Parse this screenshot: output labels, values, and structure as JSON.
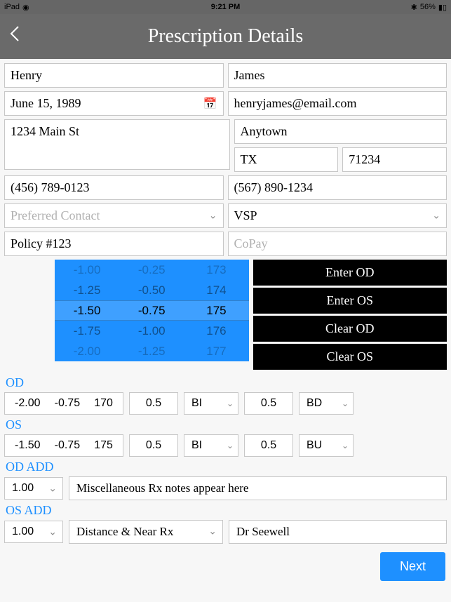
{
  "status": {
    "device": "iPad",
    "wifi": "●●●",
    "time": "9:21 PM",
    "bluetooth": "✱",
    "battery_pct": "56%",
    "battery_icon": "■"
  },
  "header": {
    "title": "Prescription Details"
  },
  "patient": {
    "first_name": "Henry",
    "last_name": "James",
    "dob": "June 15, 1989",
    "email": "henryjames@email.com",
    "address": "1234 Main St",
    "city": "Anytown",
    "state": "TX",
    "zip": "71234",
    "phone1": "(456) 789-0123",
    "phone2": "(567) 890-1234",
    "preferred_contact_placeholder": "Preferred Contact",
    "insurance": "VSP",
    "policy": "Policy #123",
    "copay_placeholder": "CoPay"
  },
  "picker": {
    "rows": [
      {
        "sph": "-1.00",
        "cyl": "-0.25",
        "axis": "173",
        "cls": ""
      },
      {
        "sph": "-1.25",
        "cyl": "-0.50",
        "axis": "174",
        "cls": "near"
      },
      {
        "sph": "-1.50",
        "cyl": "-0.75",
        "axis": "175",
        "cls": "selected"
      },
      {
        "sph": "-1.75",
        "cyl": "-1.00",
        "axis": "176",
        "cls": "near"
      },
      {
        "sph": "-2.00",
        "cyl": "-1.25",
        "axis": "177",
        "cls": ""
      }
    ]
  },
  "actions": {
    "enter_od": "Enter OD",
    "enter_os": "Enter OS",
    "clear_od": "Clear OD",
    "clear_os": "Clear OS"
  },
  "rx": {
    "od_label": "OD",
    "os_label": "OS",
    "od_add_label": "OD ADD",
    "os_add_label": "OS ADD",
    "od": {
      "sph": "-2.00",
      "cyl": "-0.75",
      "axis": "170",
      "prism1": "0.5",
      "base1": "BI",
      "prism2": "0.5",
      "base2": "BD"
    },
    "os": {
      "sph": "-1.50",
      "cyl": "-0.75",
      "axis": "175",
      "prism1": "0.5",
      "base1": "BI",
      "prism2": "0.5",
      "base2": "BU"
    },
    "od_add": "1.00",
    "os_add": "1.00",
    "notes": "Miscellaneous Rx notes appear here",
    "rx_type": "Distance & Near Rx",
    "doctor": "Dr Seewell"
  },
  "buttons": {
    "next": "Next"
  },
  "colors": {
    "accent": "#1e90ff",
    "header_bg": "#6a6a6a",
    "action_bg": "#000000",
    "border": "#c7c7c7",
    "placeholder": "#b0b0b0"
  }
}
